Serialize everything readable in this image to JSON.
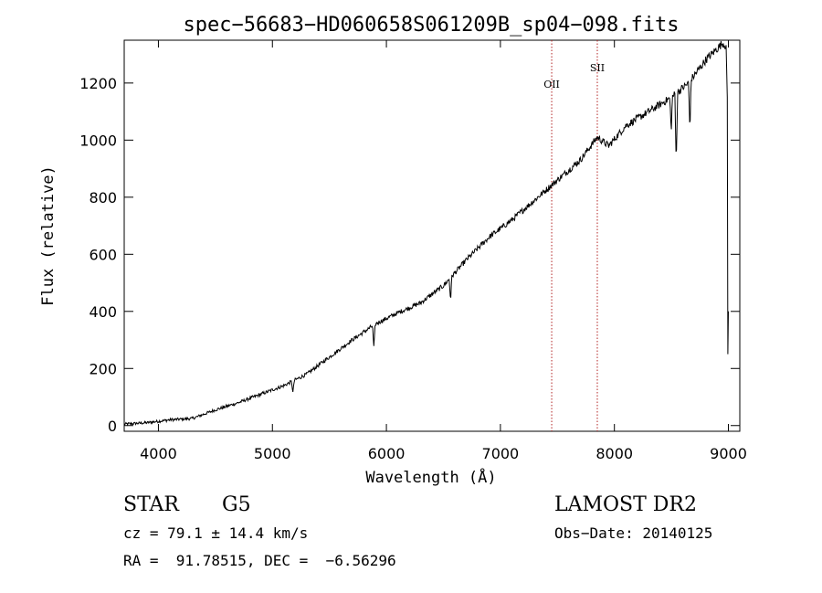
{
  "chart_data": {
    "type": "line",
    "title": "spec−56683−HD060658S061209B_sp04−098.fits",
    "xlabel": "Wavelength (Å)",
    "ylabel": "Flux (relative)",
    "xlim": [
      3700,
      9100
    ],
    "ylim": [
      -20,
      1350
    ],
    "xticks": [
      4000,
      5000,
      6000,
      7000,
      8000,
      9000
    ],
    "yticks": [
      0,
      200,
      400,
      600,
      800,
      1000,
      1200
    ],
    "grid": false,
    "line_color": "#000000",
    "marker_color": "#b22222",
    "spectrum_knots": [
      {
        "x": 3700,
        "y": 5
      },
      {
        "x": 3900,
        "y": 10
      },
      {
        "x": 4100,
        "y": 20
      },
      {
        "x": 4300,
        "y": 25
      },
      {
        "x": 4500,
        "y": 55
      },
      {
        "x": 4700,
        "y": 80
      },
      {
        "x": 4900,
        "y": 110
      },
      {
        "x": 5100,
        "y": 140
      },
      {
        "x": 5300,
        "y": 180
      },
      {
        "x": 5500,
        "y": 240
      },
      {
        "x": 5700,
        "y": 300
      },
      {
        "x": 5900,
        "y": 355
      },
      {
        "x": 6100,
        "y": 395
      },
      {
        "x": 6300,
        "y": 430
      },
      {
        "x": 6500,
        "y": 490
      },
      {
        "x": 6700,
        "y": 580
      },
      {
        "x": 6900,
        "y": 660
      },
      {
        "x": 7100,
        "y": 720
      },
      {
        "x": 7300,
        "y": 790
      },
      {
        "x": 7500,
        "y": 860
      },
      {
        "x": 7700,
        "y": 930
      },
      {
        "x": 7850,
        "y": 1010
      },
      {
        "x": 7950,
        "y": 980
      },
      {
        "x": 8100,
        "y": 1050
      },
      {
        "x": 8300,
        "y": 1100
      },
      {
        "x": 8500,
        "y": 1150
      },
      {
        "x": 8650,
        "y": 1200
      },
      {
        "x": 8800,
        "y": 1280
      },
      {
        "x": 8950,
        "y": 1340
      },
      {
        "x": 8980,
        "y": 1330
      }
    ],
    "absorption_features": [
      {
        "x": 5180,
        "depth": 40
      },
      {
        "x": 5890,
        "depth": 80
      },
      {
        "x": 6563,
        "depth": 80
      },
      {
        "x": 8498,
        "depth": 120
      },
      {
        "x": 8542,
        "depth": 250
      },
      {
        "x": 8662,
        "depth": 170
      }
    ],
    "line_markers": [
      {
        "label": "OII",
        "x": 7450
      },
      {
        "label": "SII",
        "x": 7850
      }
    ]
  },
  "info": {
    "class_label": "STAR",
    "subclass_label": "G5",
    "survey": "LAMOST DR2",
    "cz_line": "cz = 79.1 ± 14.4 km/s",
    "obs_date_line": "Obs−Date: 20140125",
    "coords_line": "RA =  91.78515, DEC =  −6.56296"
  }
}
